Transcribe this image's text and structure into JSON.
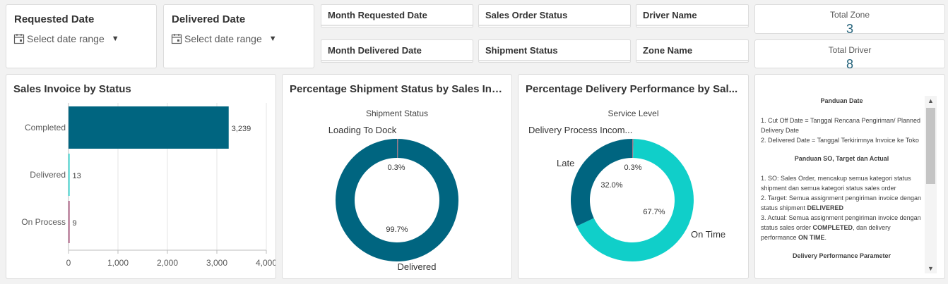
{
  "filters": {
    "requested_date": {
      "title": "Requested Date",
      "placeholder": "Select date range"
    },
    "delivered_date": {
      "title": "Delivered Date",
      "placeholder": "Select date range"
    }
  },
  "panes": {
    "month_requested_date": "Month Requested Date",
    "sales_order_status": "Sales Order Status",
    "driver_name": "Driver Name",
    "month_delivered_date": "Month Delivered Date",
    "shipment_status": "Shipment Status",
    "zone_name": "Zone Name"
  },
  "kpis": {
    "total_zone": {
      "label": "Total Zone",
      "value": "3"
    },
    "total_driver": {
      "label": "Total Driver",
      "value": "8"
    }
  },
  "charts": {
    "sales_invoice": {
      "title": "Sales Invoice by Status",
      "tick_labels": [
        "0",
        "1,000",
        "2,000",
        "3,000",
        "4,000"
      ],
      "bar_labels": [
        "3,239",
        "13",
        "9"
      ]
    },
    "shipment": {
      "title": "Percentage Shipment Status by Sales Inv...",
      "subtitle": "Shipment Status",
      "labels": {
        "loading": "Loading To Dock",
        "delivered": "Delivered"
      },
      "pct_labels": {
        "loading": "0.3%",
        "delivered": "99.7%"
      }
    },
    "delivery": {
      "title": "Percentage Delivery Performance by Sal...",
      "subtitle": "Service Level",
      "labels": {
        "incomplete": "Delivery Process Incom...",
        "late": "Late",
        "ontime": "On Time"
      },
      "pct_labels": {
        "incomplete": "0.3%",
        "late": "32.0%",
        "ontime": "67.7%"
      }
    }
  },
  "chart_data": [
    {
      "type": "bar",
      "orientation": "horizontal",
      "title": "Sales Invoice by Status",
      "categories": [
        "Completed",
        "Delivered",
        "On Process"
      ],
      "values": [
        3239,
        13,
        9
      ],
      "xlim": [
        0,
        4000
      ],
      "grid": true,
      "colors": [
        "#006580",
        "#10cfc9",
        "#9e3d6a"
      ]
    },
    {
      "type": "pie",
      "donut": true,
      "title": "Percentage Shipment Status by Sales Inv...",
      "subtitle": "Shipment Status",
      "categories": [
        "Loading To Dock",
        "Delivered"
      ],
      "values": [
        0.3,
        99.7
      ],
      "colors": [
        "#9e7a8a",
        "#006580"
      ]
    },
    {
      "type": "pie",
      "donut": true,
      "title": "Percentage Delivery Performance by Sal...",
      "subtitle": "Service Level",
      "categories": [
        "Delivery Process Incom...",
        "On Time",
        "Late"
      ],
      "values": [
        0.3,
        67.7,
        32.0
      ],
      "colors": [
        "#9e7a8a",
        "#10cfc9",
        "#006580"
      ]
    }
  ],
  "guide": {
    "heading1": "Panduan Date",
    "date1": "1. Cut Off Date = Tanggal Rencana Pengiriman/ Planned Delivery Date",
    "date2": "2. Delivered Date = Tanggal Terkirimnya Invoice ke Toko",
    "heading2": "Panduan SO, Target dan Actual",
    "so1": "1. SO: Sales Order, mencakup semua kategori status shipment dan semua kategori status sales order",
    "so2_pre": "2. Target: Semua assignment pengiriman invoice dengan status shipment ",
    "so2_bold": "DELIVERED",
    "so3_pre": "3. Actual: Semua assignment pengiriman invoice dengan status sales order ",
    "so3_bold1": "COMPLETED",
    "so3_mid": ", dan delivery performance ",
    "so3_bold2": "ON TIME",
    "so3_end": ".",
    "heading3": "Delivery Performance Parameter"
  }
}
